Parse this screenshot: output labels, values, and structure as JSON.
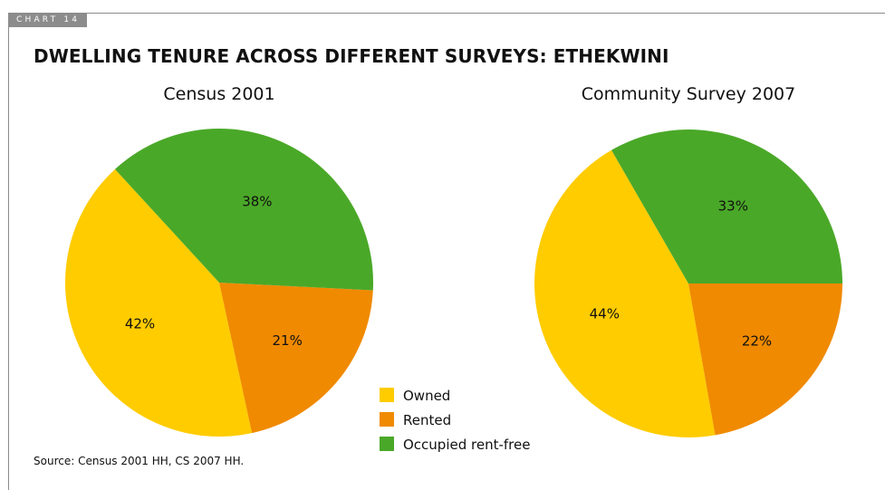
{
  "chart_tab_label": "CHART 14",
  "title": "DWELLING TENURE ACROSS DIFFERENT SURVEYS: ETHEKWINI",
  "source": "Source: Census 2001 HH, CS 2007 HH.",
  "colors": {
    "Owned": "#ffcc00",
    "Rented": "#f08a00",
    "Occupied rent-free": "#4aa828"
  },
  "chart_data": [
    {
      "type": "pie",
      "title": "Census 2001",
      "slices": [
        {
          "label": "Occupied rent-free",
          "value": 38,
          "text": "38%"
        },
        {
          "label": "Rented",
          "value": 21,
          "text": "21%"
        },
        {
          "label": "Owned",
          "value": 42,
          "text": "42%"
        }
      ]
    },
    {
      "type": "pie",
      "title": "Community Survey 2007",
      "slices": [
        {
          "label": "Occupied rent-free",
          "value": 33,
          "text": "33%"
        },
        {
          "label": "Rented",
          "value": 22,
          "text": "22%"
        },
        {
          "label": "Owned",
          "value": 44,
          "text": "44%"
        }
      ]
    }
  ],
  "legend": [
    "Owned",
    "Rented",
    "Occupied rent-free"
  ]
}
